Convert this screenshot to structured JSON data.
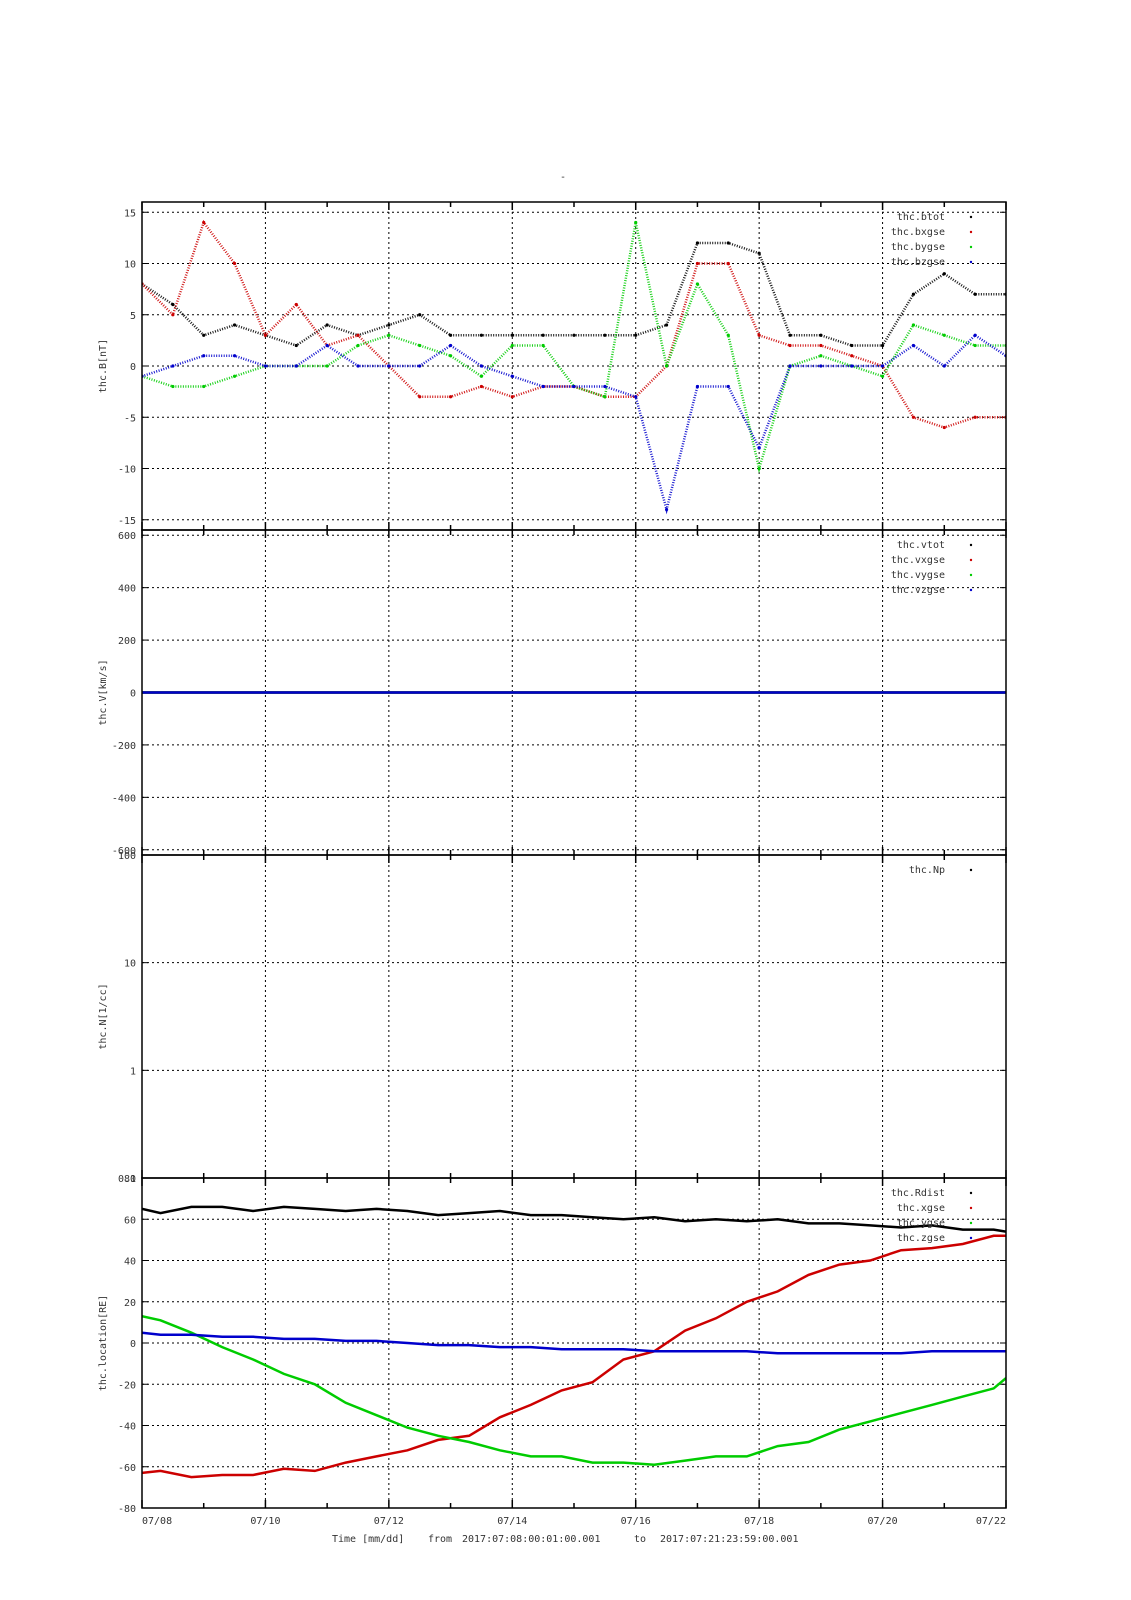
{
  "page_title": "-",
  "footer": {
    "time_label": "Time [mm/dd]",
    "from_label": "from",
    "from_value": "2017:07:08:00:01:00.001",
    "to_label": "to",
    "to_value": "2017:07:21:23:59:00.001"
  },
  "colors": {
    "black": "#000000",
    "red": "#cc0000",
    "green": "#00cc00",
    "blue": "#0000cc"
  },
  "chart_data": [
    {
      "type": "scatter",
      "ylabel": "thc.B[nT]",
      "ylim": [
        -16,
        16
      ],
      "yticks": [
        -15,
        -10,
        -5,
        0,
        5,
        10,
        15
      ],
      "grid": true,
      "legend_position": "top-right",
      "series": [
        {
          "name": "thc.btot",
          "color": "#000000",
          "x": [
            0,
            0.5,
            1,
            1.5,
            2,
            2.5,
            3,
            3.5,
            4,
            4.5,
            5,
            5.5,
            6,
            6.5,
            7,
            7.5,
            8,
            8.5,
            9,
            9.5,
            10,
            10.5,
            11,
            11.5,
            12,
            12.5,
            13,
            13.5,
            14
          ],
          "y": [
            8,
            6,
            3,
            4,
            3,
            2,
            4,
            3,
            4,
            5,
            3,
            3,
            3,
            3,
            3,
            3,
            3,
            4,
            12,
            12,
            11,
            3,
            3,
            2,
            2,
            7,
            9,
            7,
            7
          ]
        },
        {
          "name": "thc.bxgse",
          "color": "#cc0000",
          "x": [
            0,
            0.5,
            1,
            1.5,
            2,
            2.5,
            3,
            3.5,
            4,
            4.5,
            5,
            5.5,
            6,
            6.5,
            7,
            7.5,
            8,
            8.5,
            9,
            9.5,
            10,
            10.5,
            11,
            11.5,
            12,
            12.5,
            13,
            13.5,
            14
          ],
          "y": [
            8,
            5,
            14,
            10,
            3,
            6,
            2,
            3,
            0,
            -3,
            -3,
            -2,
            -3,
            -2,
            -2,
            -3,
            -3,
            0,
            10,
            10,
            3,
            2,
            2,
            1,
            0,
            -5,
            -6,
            -5,
            -5
          ]
        },
        {
          "name": "thc.bygse",
          "color": "#00cc00",
          "x": [
            0,
            0.5,
            1,
            1.5,
            2,
            2.5,
            3,
            3.5,
            4,
            4.5,
            5,
            5.5,
            6,
            6.5,
            7,
            7.5,
            8,
            8.5,
            9,
            9.5,
            10,
            10.5,
            11,
            11.5,
            12,
            12.5,
            13,
            13.5,
            14
          ],
          "y": [
            -1,
            -2,
            -2,
            -1,
            0,
            0,
            0,
            2,
            3,
            2,
            1,
            -1,
            2,
            2,
            -2,
            -3,
            14,
            0,
            8,
            3,
            -10,
            0,
            1,
            0,
            -1,
            4,
            3,
            2,
            2
          ]
        },
        {
          "name": "thc.bzgse",
          "color": "#0000cc",
          "x": [
            0,
            0.5,
            1,
            1.5,
            2,
            2.5,
            3,
            3.5,
            4,
            4.5,
            5,
            5.5,
            6,
            6.5,
            7,
            7.5,
            8,
            8.5,
            9,
            9.5,
            10,
            10.5,
            11,
            11.5,
            12,
            12.5,
            13,
            13.5,
            14
          ],
          "y": [
            -1,
            0,
            1,
            1,
            0,
            0,
            2,
            0,
            0,
            0,
            2,
            0,
            -1,
            -2,
            -2,
            -2,
            -3,
            -14,
            -2,
            -2,
            -8,
            0,
            0,
            0,
            0,
            2,
            0,
            3,
            1
          ]
        }
      ]
    },
    {
      "type": "line",
      "ylabel": "thc.V[km/s]",
      "ylim": [
        -620,
        620
      ],
      "yticks": [
        -600,
        -400,
        -200,
        0,
        200,
        400,
        600
      ],
      "grid": true,
      "legend_position": "top-right",
      "series": [
        {
          "name": "thc.vtot",
          "color": "#000000",
          "x": [
            0,
            14
          ],
          "y": [
            0,
            0
          ]
        },
        {
          "name": "thc.vxgse",
          "color": "#cc0000",
          "x": [
            0,
            14
          ],
          "y": [
            0,
            0
          ]
        },
        {
          "name": "thc.vygse",
          "color": "#00cc00",
          "x": [
            0,
            14
          ],
          "y": [
            0,
            0
          ]
        },
        {
          "name": "thc.vzgse",
          "color": "#0000cc",
          "x": [
            0,
            14
          ],
          "y": [
            0,
            0
          ]
        }
      ]
    },
    {
      "type": "line",
      "ylabel": "thc.N[1/cc]",
      "yscale": "log",
      "ylim": [
        0.1,
        100
      ],
      "yticks": [
        0.1,
        1,
        10,
        100
      ],
      "grid": true,
      "legend_position": "top-right",
      "series": [
        {
          "name": "thc.Np",
          "color": "#000000",
          "x": [],
          "y": []
        }
      ]
    },
    {
      "type": "line",
      "ylabel": "thc.location[RE]",
      "ylim": [
        -80,
        80
      ],
      "yticks": [
        -80,
        -60,
        -40,
        -20,
        0,
        20,
        40,
        60,
        80
      ],
      "grid": true,
      "legend_position": "top-right",
      "series": [
        {
          "name": "thc.Rdist",
          "color": "#000000",
          "x": [
            0,
            0.3,
            0.8,
            1.3,
            1.8,
            2.3,
            2.8,
            3.3,
            3.8,
            4.3,
            4.8,
            5.3,
            5.8,
            6.3,
            6.8,
            7.3,
            7.8,
            8.3,
            8.8,
            9.3,
            9.8,
            10.3,
            10.8,
            11.3,
            11.8,
            12.3,
            12.8,
            13.3,
            13.8,
            14
          ],
          "y": [
            65,
            63,
            66,
            66,
            64,
            66,
            65,
            64,
            65,
            64,
            62,
            63,
            64,
            62,
            62,
            61,
            60,
            61,
            59,
            60,
            59,
            60,
            58,
            58,
            57,
            56,
            57,
            55,
            55,
            54
          ]
        },
        {
          "name": "thc.xgse",
          "color": "#cc0000",
          "x": [
            0,
            0.3,
            0.8,
            1.3,
            1.8,
            2.3,
            2.8,
            3.3,
            3.8,
            4.3,
            4.8,
            5.3,
            5.8,
            6.3,
            6.8,
            7.3,
            7.8,
            8.3,
            8.8,
            9.3,
            9.8,
            10.3,
            10.8,
            11.3,
            11.8,
            12.3,
            12.8,
            13.3,
            13.8,
            14
          ],
          "y": [
            -63,
            -62,
            -65,
            -64,
            -64,
            -61,
            -62,
            -58,
            -55,
            -52,
            -47,
            -45,
            -36,
            -30,
            -23,
            -19,
            -8,
            -4,
            6,
            12,
            20,
            25,
            33,
            38,
            40,
            45,
            46,
            48,
            52,
            52
          ]
        },
        {
          "name": "thc.ygse",
          "color": "#00cc00",
          "x": [
            0,
            0.3,
            0.8,
            1.3,
            1.8,
            2.3,
            2.8,
            3.3,
            3.8,
            4.3,
            4.8,
            5.3,
            5.8,
            6.3,
            6.8,
            7.3,
            7.8,
            8.3,
            8.8,
            9.3,
            9.8,
            10.3,
            10.8,
            11.3,
            11.8,
            12.3,
            12.8,
            13.3,
            13.8,
            14
          ],
          "y": [
            13,
            11,
            5,
            -2,
            -8,
            -15,
            -20,
            -29,
            -35,
            -41,
            -45,
            -48,
            -52,
            -55,
            -55,
            -58,
            -58,
            -59,
            -57,
            -55,
            -55,
            -50,
            -48,
            -42,
            -38,
            -34,
            -30,
            -26,
            -22,
            -17
          ]
        },
        {
          "name": "thc.zgse",
          "color": "#0000cc",
          "x": [
            0,
            0.3,
            0.8,
            1.3,
            1.8,
            2.3,
            2.8,
            3.3,
            3.8,
            4.3,
            4.8,
            5.3,
            5.8,
            6.3,
            6.8,
            7.3,
            7.8,
            8.3,
            8.8,
            9.3,
            9.8,
            10.3,
            10.8,
            11.3,
            11.8,
            12.3,
            12.8,
            13.3,
            13.8,
            14
          ],
          "y": [
            5,
            4,
            4,
            3,
            3,
            2,
            2,
            1,
            1,
            0,
            -1,
            -1,
            -2,
            -2,
            -3,
            -3,
            -3,
            -4,
            -4,
            -4,
            -4,
            -5,
            -5,
            -5,
            -5,
            -5,
            -4,
            -4,
            -4,
            -4
          ]
        }
      ]
    }
  ],
  "x_axis": {
    "ticks": [
      "07/08",
      "07/10",
      "07/12",
      "07/14",
      "07/16",
      "07/18",
      "07/20",
      "07/22"
    ]
  }
}
